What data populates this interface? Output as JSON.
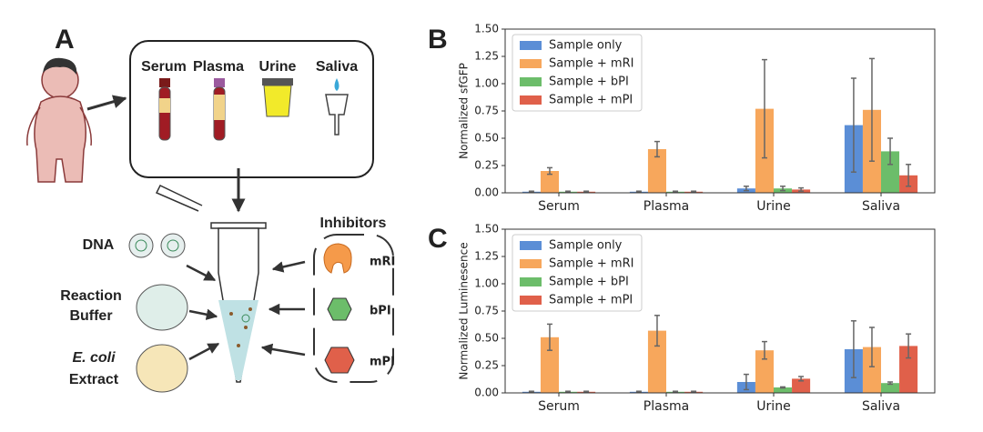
{
  "diagram": {
    "panel_labels": [
      "A",
      "B",
      "C"
    ],
    "samples": [
      "Serum",
      "Plasma",
      "Urine",
      "Saliva"
    ],
    "dna": "DNA",
    "buffer": [
      "Reaction",
      "Buffer"
    ],
    "extract": [
      "E. coli",
      "Extract"
    ],
    "inhibitors_title": "Inhibitors",
    "inhibitors": [
      "mRI",
      "bPI",
      "mPI"
    ]
  },
  "chart_data": [
    {
      "type": "bar",
      "ylabel": "Normalized sfGFP",
      "categories": [
        "Serum",
        "Plasma",
        "Urine",
        "Saliva"
      ],
      "series": [
        {
          "name": "Sample only",
          "color": "#5b8ed6",
          "values": [
            0.01,
            0.01,
            0.04,
            0.62
          ],
          "errors": [
            0.005,
            0.005,
            0.02,
            0.43
          ]
        },
        {
          "name": "Sample + mRI",
          "color": "#f7a75c",
          "values": [
            0.2,
            0.4,
            0.77,
            0.76
          ],
          "errors": [
            0.03,
            0.07,
            0.45,
            0.47
          ]
        },
        {
          "name": "Sample + bPI",
          "color": "#6cbd6a",
          "values": [
            0.01,
            0.01,
            0.04,
            0.38
          ],
          "errors": [
            0.005,
            0.005,
            0.02,
            0.12
          ]
        },
        {
          "name": "Sample + mPI",
          "color": "#e0604a",
          "values": [
            0.01,
            0.01,
            0.03,
            0.16
          ],
          "errors": [
            0.005,
            0.005,
            0.015,
            0.1
          ]
        }
      ],
      "ylim": [
        0,
        1.5
      ],
      "yticks": [
        {
          "value": 0,
          "label": "0.00"
        },
        0.25,
        {
          "value": 0.5,
          "label": "0.50"
        },
        0.75,
        {
          "value": 1,
          "label": "1.00"
        },
        1.25,
        {
          "value": 1.5,
          "label": "1.50"
        }
      ],
      "legend": "upper-left"
    },
    {
      "type": "bar",
      "ylabel": "Normalized Luminesence",
      "categories": [
        "Serum",
        "Plasma",
        "Urine",
        "Saliva"
      ],
      "series": [
        {
          "name": "Sample only",
          "color": "#5b8ed6",
          "values": [
            0.01,
            0.01,
            0.1,
            0.4
          ],
          "errors": [
            0.005,
            0.005,
            0.07,
            0.26
          ]
        },
        {
          "name": "Sample + mRI",
          "color": "#f7a75c",
          "values": [
            0.51,
            0.57,
            0.39,
            0.42
          ],
          "errors": [
            0.12,
            0.14,
            0.08,
            0.18
          ]
        },
        {
          "name": "Sample + bPI",
          "color": "#6cbd6a",
          "values": [
            0.01,
            0.01,
            0.05,
            0.09
          ],
          "errors": [
            0.005,
            0.005,
            0.005,
            0.01
          ]
        },
        {
          "name": "Sample + mPI",
          "color": "#e0604a",
          "values": [
            0.01,
            0.01,
            0.13,
            0.43
          ],
          "errors": [
            0.005,
            0.005,
            0.02,
            0.11
          ]
        }
      ],
      "ylim": [
        0,
        1.5
      ],
      "yticks": [
        {
          "value": 0,
          "label": "0.00"
        },
        0.25,
        {
          "value": 0.5,
          "label": "0.50"
        },
        0.75,
        {
          "value": 1,
          "label": "1.00"
        },
        1.25,
        {
          "value": 1.5,
          "label": "1.50"
        }
      ],
      "legend": "upper-left"
    }
  ]
}
